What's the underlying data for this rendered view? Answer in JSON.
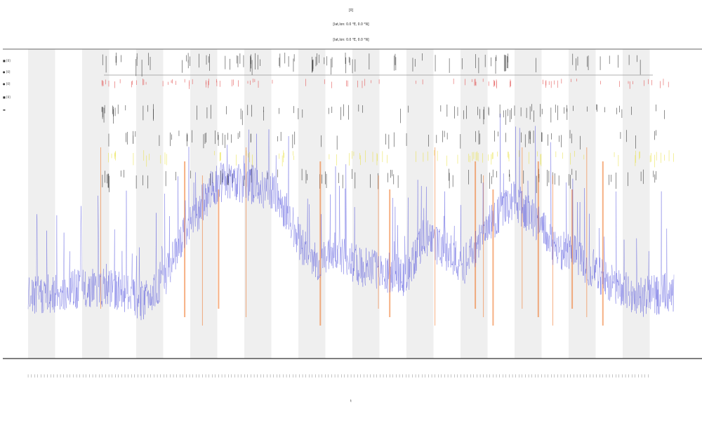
{
  "chart_data": {
    "type": "line",
    "title": "[0]",
    "subtitle_lines": [
      "[lat,lon: 0.0 °E, 0.0 °N]",
      "[lat,lon: 0.0 °E, 0.0 °N]"
    ],
    "xlabel": "t",
    "ylabel": "",
    "grid": "alternating vertical bands",
    "legend_position": "top-left",
    "legend_entries": [
      "■ [0]",
      "● [0]",
      "● [0]",
      "■ [0]",
      "▬"
    ],
    "x": {
      "count": 400,
      "range": [
        0,
        400
      ]
    },
    "ylim": [
      0,
      1
    ],
    "series": [
      {
        "role": "signal",
        "color": "#3a3ad8",
        "segments": [
          [
            0,
            0.08
          ],
          [
            20,
            0.09
          ],
          [
            40,
            0.1
          ],
          [
            60,
            0.09
          ],
          [
            70,
            0.07
          ],
          [
            85,
            0.12
          ],
          [
            100,
            0.22
          ],
          [
            115,
            0.3
          ],
          [
            125,
            0.31
          ],
          [
            140,
            0.3
          ],
          [
            150,
            0.29
          ],
          [
            160,
            0.25
          ],
          [
            170,
            0.18
          ],
          [
            180,
            0.14
          ],
          [
            190,
            0.17
          ],
          [
            205,
            0.14
          ],
          [
            220,
            0.13
          ],
          [
            235,
            0.12
          ],
          [
            245,
            0.2
          ],
          [
            255,
            0.18
          ],
          [
            270,
            0.14
          ],
          [
            285,
            0.22
          ],
          [
            300,
            0.27
          ],
          [
            315,
            0.23
          ],
          [
            325,
            0.18
          ],
          [
            340,
            0.16
          ],
          [
            360,
            0.11
          ],
          [
            380,
            0.08
          ],
          [
            400,
            0.09
          ]
        ]
      },
      {
        "role": "events",
        "color": "#f07020",
        "event_x": [
          45,
          97,
          108,
          118,
          135,
          181,
          217,
          224,
          252,
          277,
          282,
          288,
          306,
          316,
          325,
          337,
          346,
          356
        ]
      }
    ],
    "event_rows": [
      {
        "color": "#222222"
      },
      {
        "color": "#e04040"
      },
      {
        "color": "#222222"
      },
      {
        "color": "#222222"
      },
      {
        "color": "#e8e040"
      },
      {
        "color": "#222222"
      }
    ],
    "band_color": "#efefef",
    "baseline_color": "#333333"
  }
}
